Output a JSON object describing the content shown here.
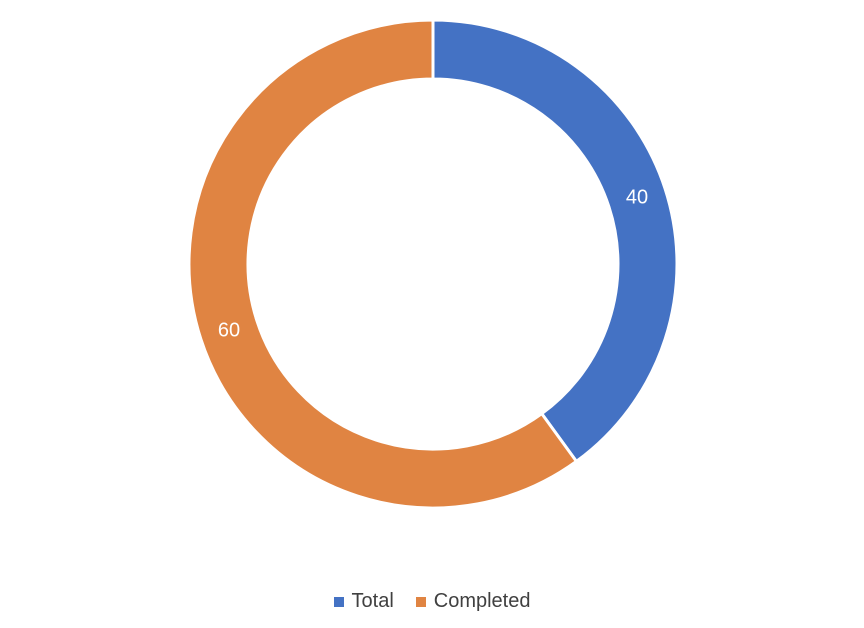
{
  "chart_data": {
    "type": "pie",
    "variant": "doughnut",
    "title": "",
    "slices": [
      {
        "label": "Total",
        "value": 40,
        "color": "#4472C4"
      },
      {
        "label": "Completed",
        "value": 60,
        "color": "#E08442"
      }
    ],
    "data_labels": [
      "40",
      "60"
    ],
    "legend_position": "bottom"
  }
}
